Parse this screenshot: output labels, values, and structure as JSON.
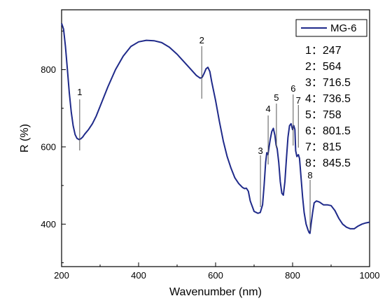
{
  "chart_data": {
    "type": "line",
    "xlabel": "Wavenumber (nm)",
    "ylabel": "R (%)",
    "xlim": [
      200,
      1000
    ],
    "ylim": [
      290,
      955
    ],
    "x_ticks": [
      200,
      400,
      600,
      800,
      1000
    ],
    "y_ticks": [
      400,
      600,
      800
    ],
    "grid": false,
    "legend_position": "top-right",
    "series": [
      {
        "name": "MG-6",
        "color": "#1f2a8a",
        "x": [
          200,
          205,
          210,
          215,
          220,
          225,
          230,
          235,
          240,
          245,
          250,
          255,
          260,
          270,
          280,
          290,
          300,
          320,
          340,
          360,
          380,
          400,
          420,
          440,
          460,
          480,
          500,
          520,
          540,
          550,
          560,
          565,
          570,
          575,
          580,
          585,
          590,
          600,
          610,
          620,
          630,
          640,
          650,
          660,
          670,
          675,
          680,
          685,
          690,
          700,
          710,
          716,
          722,
          726,
          730,
          733,
          736,
          739,
          742,
          746,
          750,
          754,
          757,
          760,
          764,
          768,
          772,
          776,
          780,
          784,
          788,
          792,
          796,
          800,
          803,
          806,
          808,
          811,
          815,
          818,
          822,
          826,
          830,
          835,
          840,
          843,
          845,
          848,
          852,
          856,
          862,
          870,
          880,
          890,
          900,
          910,
          920,
          930,
          940,
          950,
          960,
          970,
          980,
          990,
          1000
        ],
        "y": [
          920,
          905,
          860,
          800,
          740,
          690,
          655,
          632,
          622,
          619,
          621,
          626,
          633,
          645,
          660,
          680,
          705,
          755,
          800,
          835,
          860,
          872,
          876,
          875,
          870,
          858,
          840,
          818,
          796,
          785,
          778,
          780,
          790,
          802,
          806,
          795,
          768,
          720,
          665,
          615,
          575,
          545,
          520,
          505,
          495,
          492,
          493,
          485,
          460,
          433,
          428,
          430,
          450,
          500,
          560,
          585,
          580,
          600,
          620,
          640,
          648,
          630,
          605,
          595,
          560,
          510,
          480,
          475,
          510,
          570,
          625,
          655,
          660,
          645,
          655,
          645,
          590,
          575,
          580,
          570,
          520,
          470,
          430,
          400,
          385,
          378,
          376,
          400,
          430,
          455,
          460,
          457,
          450,
          450,
          448,
          435,
          415,
          400,
          392,
          388,
          388,
          395,
          400,
          403,
          405
        ]
      }
    ],
    "annotations": [
      {
        "label": "1",
        "x": 247
      },
      {
        "label": "2",
        "x": 564
      },
      {
        "label": "3",
        "x": 716.5
      },
      {
        "label": "4",
        "x": 736.5
      },
      {
        "label": "5",
        "x": 758
      },
      {
        "label": "6",
        "x": 801.5
      },
      {
        "label": "7",
        "x": 815
      },
      {
        "label": "8",
        "x": 845.5
      }
    ],
    "legend_list": [
      "1：247",
      "2：564",
      "3：716.5",
      "4：736.5",
      "5：758",
      "6：801.5",
      "7：815",
      "8：845.5"
    ]
  }
}
